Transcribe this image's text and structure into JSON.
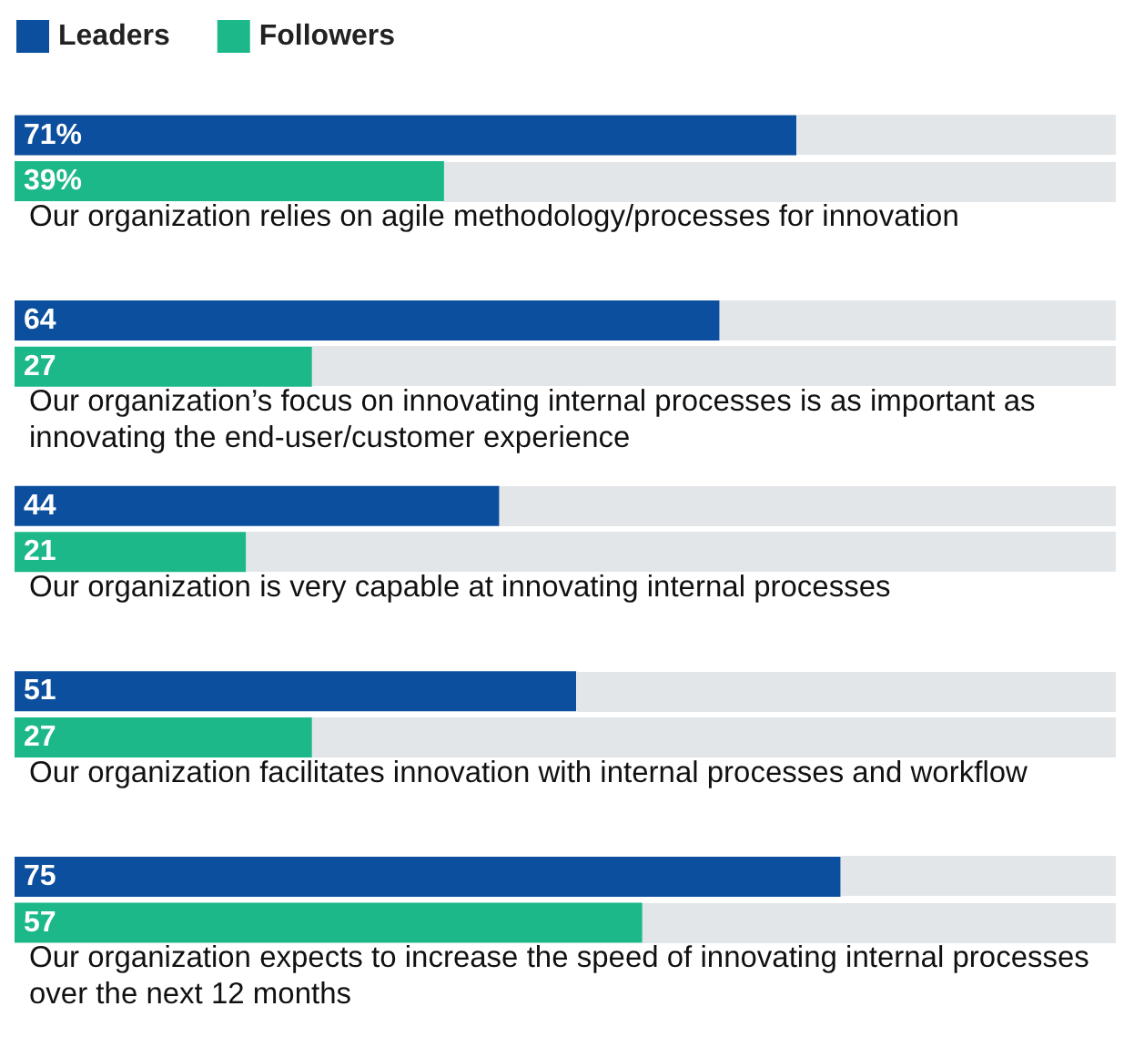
{
  "chart_data": {
    "type": "bar",
    "orientation": "horizontal",
    "categories": [
      "Our organization relies on agile methodology/processes for innovation",
      "Our organization’s focus on innovating internal processes is as important as innovating the end-user/customer experience",
      "Our organization is very capable at innovating internal processes",
      "Our organization facilitates innovation with internal processes and workflow",
      "Our organization expects to increase the speed of innovating internal processes over the next 12 months"
    ],
    "series": [
      {
        "name": "Leaders",
        "color": "#0b4f9e",
        "values": [
          71,
          64,
          44,
          51,
          75
        ],
        "value_labels": [
          "71%",
          "64",
          "44",
          "51",
          "75"
        ]
      },
      {
        "name": "Followers",
        "color": "#1db88a",
        "values": [
          39,
          27,
          21,
          27,
          57
        ],
        "value_labels": [
          "39%",
          "27",
          "21",
          "27",
          "57"
        ]
      }
    ],
    "xlim": [
      0,
      100
    ],
    "legend": "top left"
  }
}
